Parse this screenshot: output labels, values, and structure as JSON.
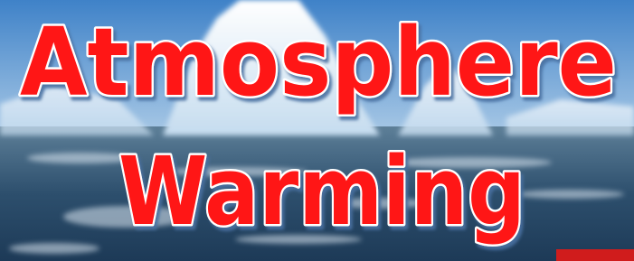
{
  "title": {
    "line1": "Atmosphere",
    "line2": "Warming"
  }
}
